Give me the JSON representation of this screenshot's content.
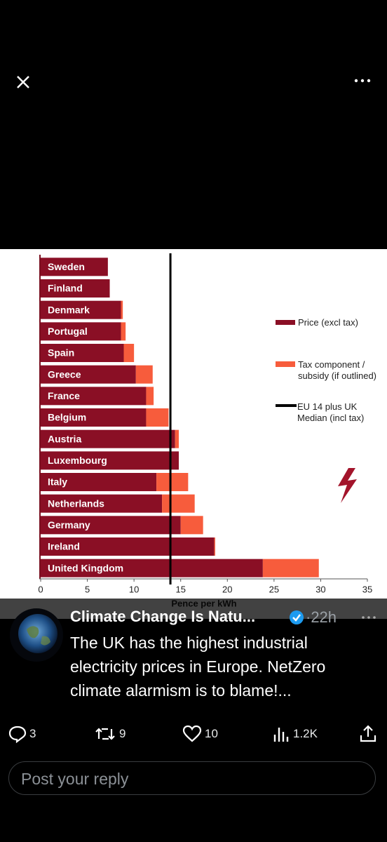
{
  "chart_data": {
    "type": "bar",
    "orientation": "horizontal",
    "stacked": true,
    "categories": [
      "Sweden",
      "Finland",
      "Denmark",
      "Portugal",
      "Spain",
      "Greece",
      "France",
      "Belgium",
      "Austria",
      "Luxembourg",
      "Italy",
      "Netherlands",
      "Germany",
      "Ireland",
      "United Kingdom"
    ],
    "series": [
      {
        "name": "Price (excl tax)",
        "color": "#8a0f25",
        "values": [
          7.2,
          7.4,
          8.6,
          8.6,
          8.9,
          10.2,
          11.3,
          11.3,
          14.4,
          14.8,
          12.4,
          13.0,
          15.0,
          18.6,
          23.8
        ]
      },
      {
        "name": "Tax component / subsidy (if outlined)",
        "color": "#f75c3c",
        "values": [
          0,
          0,
          0.2,
          0.5,
          1.1,
          1.8,
          0.8,
          2.4,
          0.4,
          0,
          3.4,
          3.5,
          2.4,
          0.1,
          6.0
        ]
      }
    ],
    "reference_line": {
      "name": "EU 14 plus UK Median (incl tax)",
      "value": 13.9,
      "color": "#000000"
    },
    "xlabel": "Pence per kWh",
    "xlim": [
      0,
      35
    ],
    "xticks": [
      0,
      5,
      10,
      15,
      20,
      25,
      30,
      35
    ]
  },
  "post": {
    "author": "Climate Change Is Natu...",
    "time": "·22h",
    "text": "The UK has the highest industrial electricity prices in Europe. NetZero climate alarmism is to blame!...",
    "replies": "3",
    "reposts": "9",
    "likes": "10",
    "views": "1.2K"
  },
  "reply_box": {
    "placeholder": "Post your reply"
  }
}
